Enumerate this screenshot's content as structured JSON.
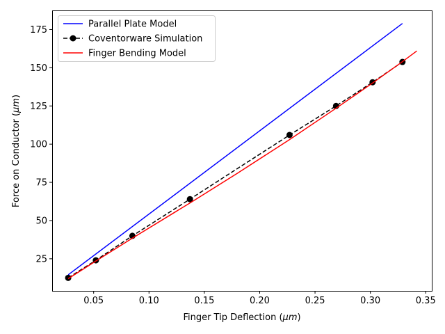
{
  "chart_data": {
    "type": "line",
    "xlabel_main": "Finger Tip Deflection (",
    "xlabel_unit": "μm",
    "xlabel_close": ")",
    "ylabel_main": "Force on Conductor (",
    "ylabel_unit": "μm",
    "ylabel_close": ")",
    "xlim": [
      0.0125,
      0.3555
    ],
    "ylim": [
      4.0,
      187.5
    ],
    "xticks": [
      0.05,
      0.1,
      0.15,
      0.2,
      0.25,
      0.3,
      0.35
    ],
    "xtick_labels": [
      "0.05",
      "0.10",
      "0.15",
      "0.20",
      "0.25",
      "0.30",
      "0.35"
    ],
    "yticks": [
      25,
      50,
      75,
      100,
      125,
      150,
      175
    ],
    "ytick_labels": [
      "25",
      "50",
      "75",
      "100",
      "125",
      "150",
      "175"
    ],
    "grid": false,
    "legend_position": "top-left",
    "series": [
      {
        "name": "Parallel Plate Model",
        "color": "#0000ff",
        "line_style": "solid",
        "marker": "none",
        "x": [
          0.027,
          0.329
        ],
        "y": [
          14.5,
          179.0
        ]
      },
      {
        "name": "Coventorware Simulation",
        "color": "#000000",
        "line_style": "dashed",
        "marker": "circle",
        "x": [
          0.027,
          0.052,
          0.085,
          0.137,
          0.227,
          0.269,
          0.302,
          0.329
        ],
        "y": [
          12.5,
          24.0,
          40.0,
          64.0,
          106.0,
          125.0,
          140.5,
          153.8
        ]
      },
      {
        "name": "Finger Bending Model",
        "color": "#ff0000",
        "line_style": "solid",
        "marker": "none",
        "x": [
          0.027,
          0.052,
          0.085,
          0.137,
          0.18,
          0.227,
          0.269,
          0.302,
          0.329,
          0.342
        ],
        "y": [
          12.0,
          23.5,
          38.5,
          61.5,
          81.0,
          103.0,
          123.5,
          140.0,
          154.0,
          161.0
        ]
      }
    ]
  }
}
